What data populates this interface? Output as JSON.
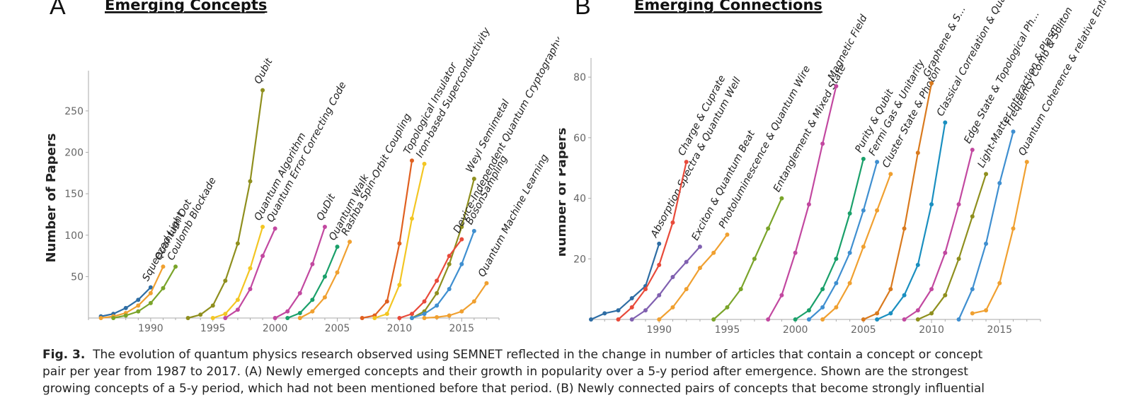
{
  "caption": {
    "head": "Fig. 3.",
    "lines": [
      "The evolution of quantum physics research observed using SEMNET reflected in the change in number of articles that contain a concept or concept",
      "pair per year from 1987 to 2017. (A) Newly emerged concepts and their growth in popularity over a 5-y period after emergence. Shown are the strongest",
      "growing concepts of a 5-y period, which had not been mentioned before that period. (B) Newly connected pairs of concepts that become strongly influential"
    ]
  },
  "chart_data": [
    {
      "type": "line",
      "panel_letter": "A",
      "title": "Emerging Concepts",
      "ylabel": "Number of Papers",
      "xlabel": "",
      "xlim": [
        1985,
        2018
      ],
      "ylim": [
        0,
        290
      ],
      "xticks": [
        1990,
        1995,
        2000,
        2005,
        2010,
        2015
      ],
      "yticks": [
        50,
        100,
        150,
        200,
        250
      ],
      "series": [
        {
          "name": "Squeezed Light",
          "color": "#2e6da4",
          "x": [
            1986,
            1987,
            1988,
            1989,
            1990
          ],
          "y": [
            2,
            5,
            12,
            22,
            37
          ]
        },
        {
          "name": "Quantum Dot",
          "color": "#f0a030",
          "x": [
            1986,
            1987,
            1988,
            1989,
            1990,
            1991
          ],
          "y": [
            0,
            2,
            6,
            15,
            30,
            62
          ]
        },
        {
          "name": "Coulomb Blockade",
          "color": "#7aa42a",
          "x": [
            1987,
            1988,
            1989,
            1990,
            1991,
            1992
          ],
          "y": [
            0,
            3,
            8,
            18,
            36,
            62
          ]
        },
        {
          "name": "Qubit",
          "color": "#8f8f1e",
          "x": [
            1993,
            1994,
            1995,
            1996,
            1997,
            1998,
            1999
          ],
          "y": [
            0,
            4,
            15,
            45,
            90,
            165,
            275
          ]
        },
        {
          "name": "Quantum Algorithm",
          "color": "#f3c623",
          "x": [
            1995,
            1996,
            1997,
            1998,
            1999
          ],
          "y": [
            0,
            5,
            22,
            60,
            110
          ]
        },
        {
          "name": "Quantum Error Correcting Code",
          "color": "#c248a0",
          "x": [
            1996,
            1997,
            1998,
            1999,
            2000
          ],
          "y": [
            0,
            10,
            35,
            75,
            108
          ]
        },
        {
          "name": "QuDit",
          "color": "#c248a0",
          "x": [
            2000,
            2001,
            2002,
            2003,
            2004
          ],
          "y": [
            0,
            8,
            30,
            65,
            110
          ]
        },
        {
          "name": "Quantum Walk",
          "color": "#1aa06a",
          "x": [
            2001,
            2002,
            2003,
            2004,
            2005
          ],
          "y": [
            0,
            6,
            22,
            50,
            86
          ]
        },
        {
          "name": "Rashba Spin-Orbit Coupling",
          "color": "#f0a030",
          "x": [
            2002,
            2003,
            2004,
            2005,
            2006
          ],
          "y": [
            0,
            8,
            25,
            55,
            92
          ]
        },
        {
          "name": "Topological Insulator",
          "color": "#e06020",
          "x": [
            2007,
            2008,
            2009,
            2010,
            2011
          ],
          "y": [
            0,
            3,
            20,
            90,
            190
          ]
        },
        {
          "name": "Iron-based Superconductivity",
          "color": "#f3c623",
          "x": [
            2008,
            2009,
            2010,
            2011,
            2012
          ],
          "y": [
            0,
            5,
            40,
            120,
            186
          ]
        },
        {
          "name": "Weyl Semimetal",
          "color": "#8f8f1e",
          "x": [
            2011,
            2012,
            2013,
            2014,
            2015,
            2016
          ],
          "y": [
            0,
            8,
            30,
            65,
            110,
            168
          ]
        },
        {
          "name": "Device-Independent Quantum Cryptography",
          "color": "#e84a3a",
          "x": [
            2010,
            2011,
            2012,
            2013,
            2014,
            2015
          ],
          "y": [
            0,
            5,
            20,
            45,
            75,
            95
          ]
        },
        {
          "name": "BosonSampling",
          "color": "#3f8fd0",
          "x": [
            2011,
            2012,
            2013,
            2014,
            2015,
            2016
          ],
          "y": [
            0,
            5,
            15,
            35,
            65,
            105
          ]
        },
        {
          "name": "Quantum Machine Learning",
          "color": "#f0a030",
          "x": [
            2012,
            2013,
            2014,
            2015,
            2016,
            2017
          ],
          "y": [
            0,
            1,
            3,
            8,
            20,
            42
          ]
        }
      ]
    },
    {
      "type": "line",
      "panel_letter": "B",
      "title": "Emerging Connections",
      "ylabel": "Number of Papers",
      "xlabel": "",
      "xlim": [
        1985,
        2018
      ],
      "ylim": [
        0,
        84
      ],
      "xticks": [
        1990,
        1995,
        2000,
        2005,
        2010,
        2015
      ],
      "yticks": [
        20,
        40,
        60,
        80
      ],
      "series": [
        {
          "name": "Absorption Spectra & Quantum Well",
          "color": "#2e6da4",
          "x": [
            1985,
            1986,
            1987,
            1988,
            1989,
            1990
          ],
          "y": [
            0,
            2,
            3,
            7,
            11,
            25
          ]
        },
        {
          "name": "Charge & Cuprate",
          "color": "#e84a3a",
          "x": [
            1987,
            1988,
            1989,
            1990,
            1991,
            1992
          ],
          "y": [
            0,
            4,
            10,
            18,
            32,
            52
          ]
        },
        {
          "name": "Exciton & Quantum Beat",
          "color": "#8060b0",
          "x": [
            1988,
            1989,
            1990,
            1991,
            1992,
            1993
          ],
          "y": [
            0,
            3,
            8,
            14,
            19,
            24
          ]
        },
        {
          "name": "Photoluminescence & Quantum Wire",
          "color": "#f0a030",
          "x": [
            1990,
            1991,
            1992,
            1993,
            1994,
            1995
          ],
          "y": [
            0,
            4,
            10,
            17,
            22,
            28
          ]
        },
        {
          "name": "Entanglement & Mixed State",
          "color": "#7aa42a",
          "x": [
            1994,
            1995,
            1996,
            1997,
            1998,
            1999
          ],
          "y": [
            0,
            4,
            10,
            20,
            30,
            40
          ]
        },
        {
          "name": "Magnetic Field",
          "color": "#c248a0",
          "x": [
            1998,
            1999,
            2000,
            2001,
            2002,
            2003
          ],
          "y": [
            0,
            8,
            22,
            38,
            58,
            77
          ]
        },
        {
          "name": "Purity & Qubit",
          "color": "#1aa06a",
          "x": [
            2000,
            2001,
            2002,
            2003,
            2004,
            2005
          ],
          "y": [
            0,
            3,
            10,
            20,
            35,
            53
          ]
        },
        {
          "name": "Fermi Gas & Unitarity",
          "color": "#3f8fd0",
          "x": [
            2001,
            2002,
            2003,
            2004,
            2005,
            2006
          ],
          "y": [
            0,
            4,
            12,
            22,
            36,
            52
          ]
        },
        {
          "name": "Cluster State & Photon",
          "color": "#f0a030",
          "x": [
            2002,
            2003,
            2004,
            2005,
            2006,
            2007
          ],
          "y": [
            0,
            4,
            12,
            24,
            36,
            48
          ]
        },
        {
          "name": "Graphene & S...",
          "color": "#d97a1e",
          "x": [
            2005,
            2006,
            2007,
            2008,
            2009,
            2010
          ],
          "y": [
            0,
            2,
            10,
            30,
            55,
            78
          ]
        },
        {
          "name": "Classical Correlation & Quantum Discord",
          "color": "#1a8fc0",
          "x": [
            2006,
            2007,
            2008,
            2009,
            2010,
            2011
          ],
          "y": [
            0,
            2,
            8,
            18,
            38,
            65
          ]
        },
        {
          "name": "Edge State & Topological Ph...",
          "color": "#c248a0",
          "x": [
            2008,
            2009,
            2010,
            2011,
            2012,
            2013
          ],
          "y": [
            0,
            3,
            10,
            22,
            38,
            56
          ]
        },
        {
          "name": "Light-Matter Interaction & Plasm...",
          "color": "#8f8f1e",
          "x": [
            2009,
            2010,
            2011,
            2012,
            2013,
            2014
          ],
          "y": [
            0,
            2,
            8,
            20,
            34,
            48
          ]
        },
        {
          "name": "Frequency Comb & Soliton",
          "color": "#3f8fd0",
          "x": [
            2012,
            2013,
            2014,
            2015,
            2016
          ],
          "y": [
            0,
            10,
            25,
            45,
            62
          ]
        },
        {
          "name": "Quantum Coherence & relative Entropy",
          "color": "#f0a030",
          "x": [
            2013,
            2014,
            2015,
            2016,
            2017
          ],
          "y": [
            2,
            3,
            12,
            30,
            52
          ]
        }
      ]
    }
  ]
}
